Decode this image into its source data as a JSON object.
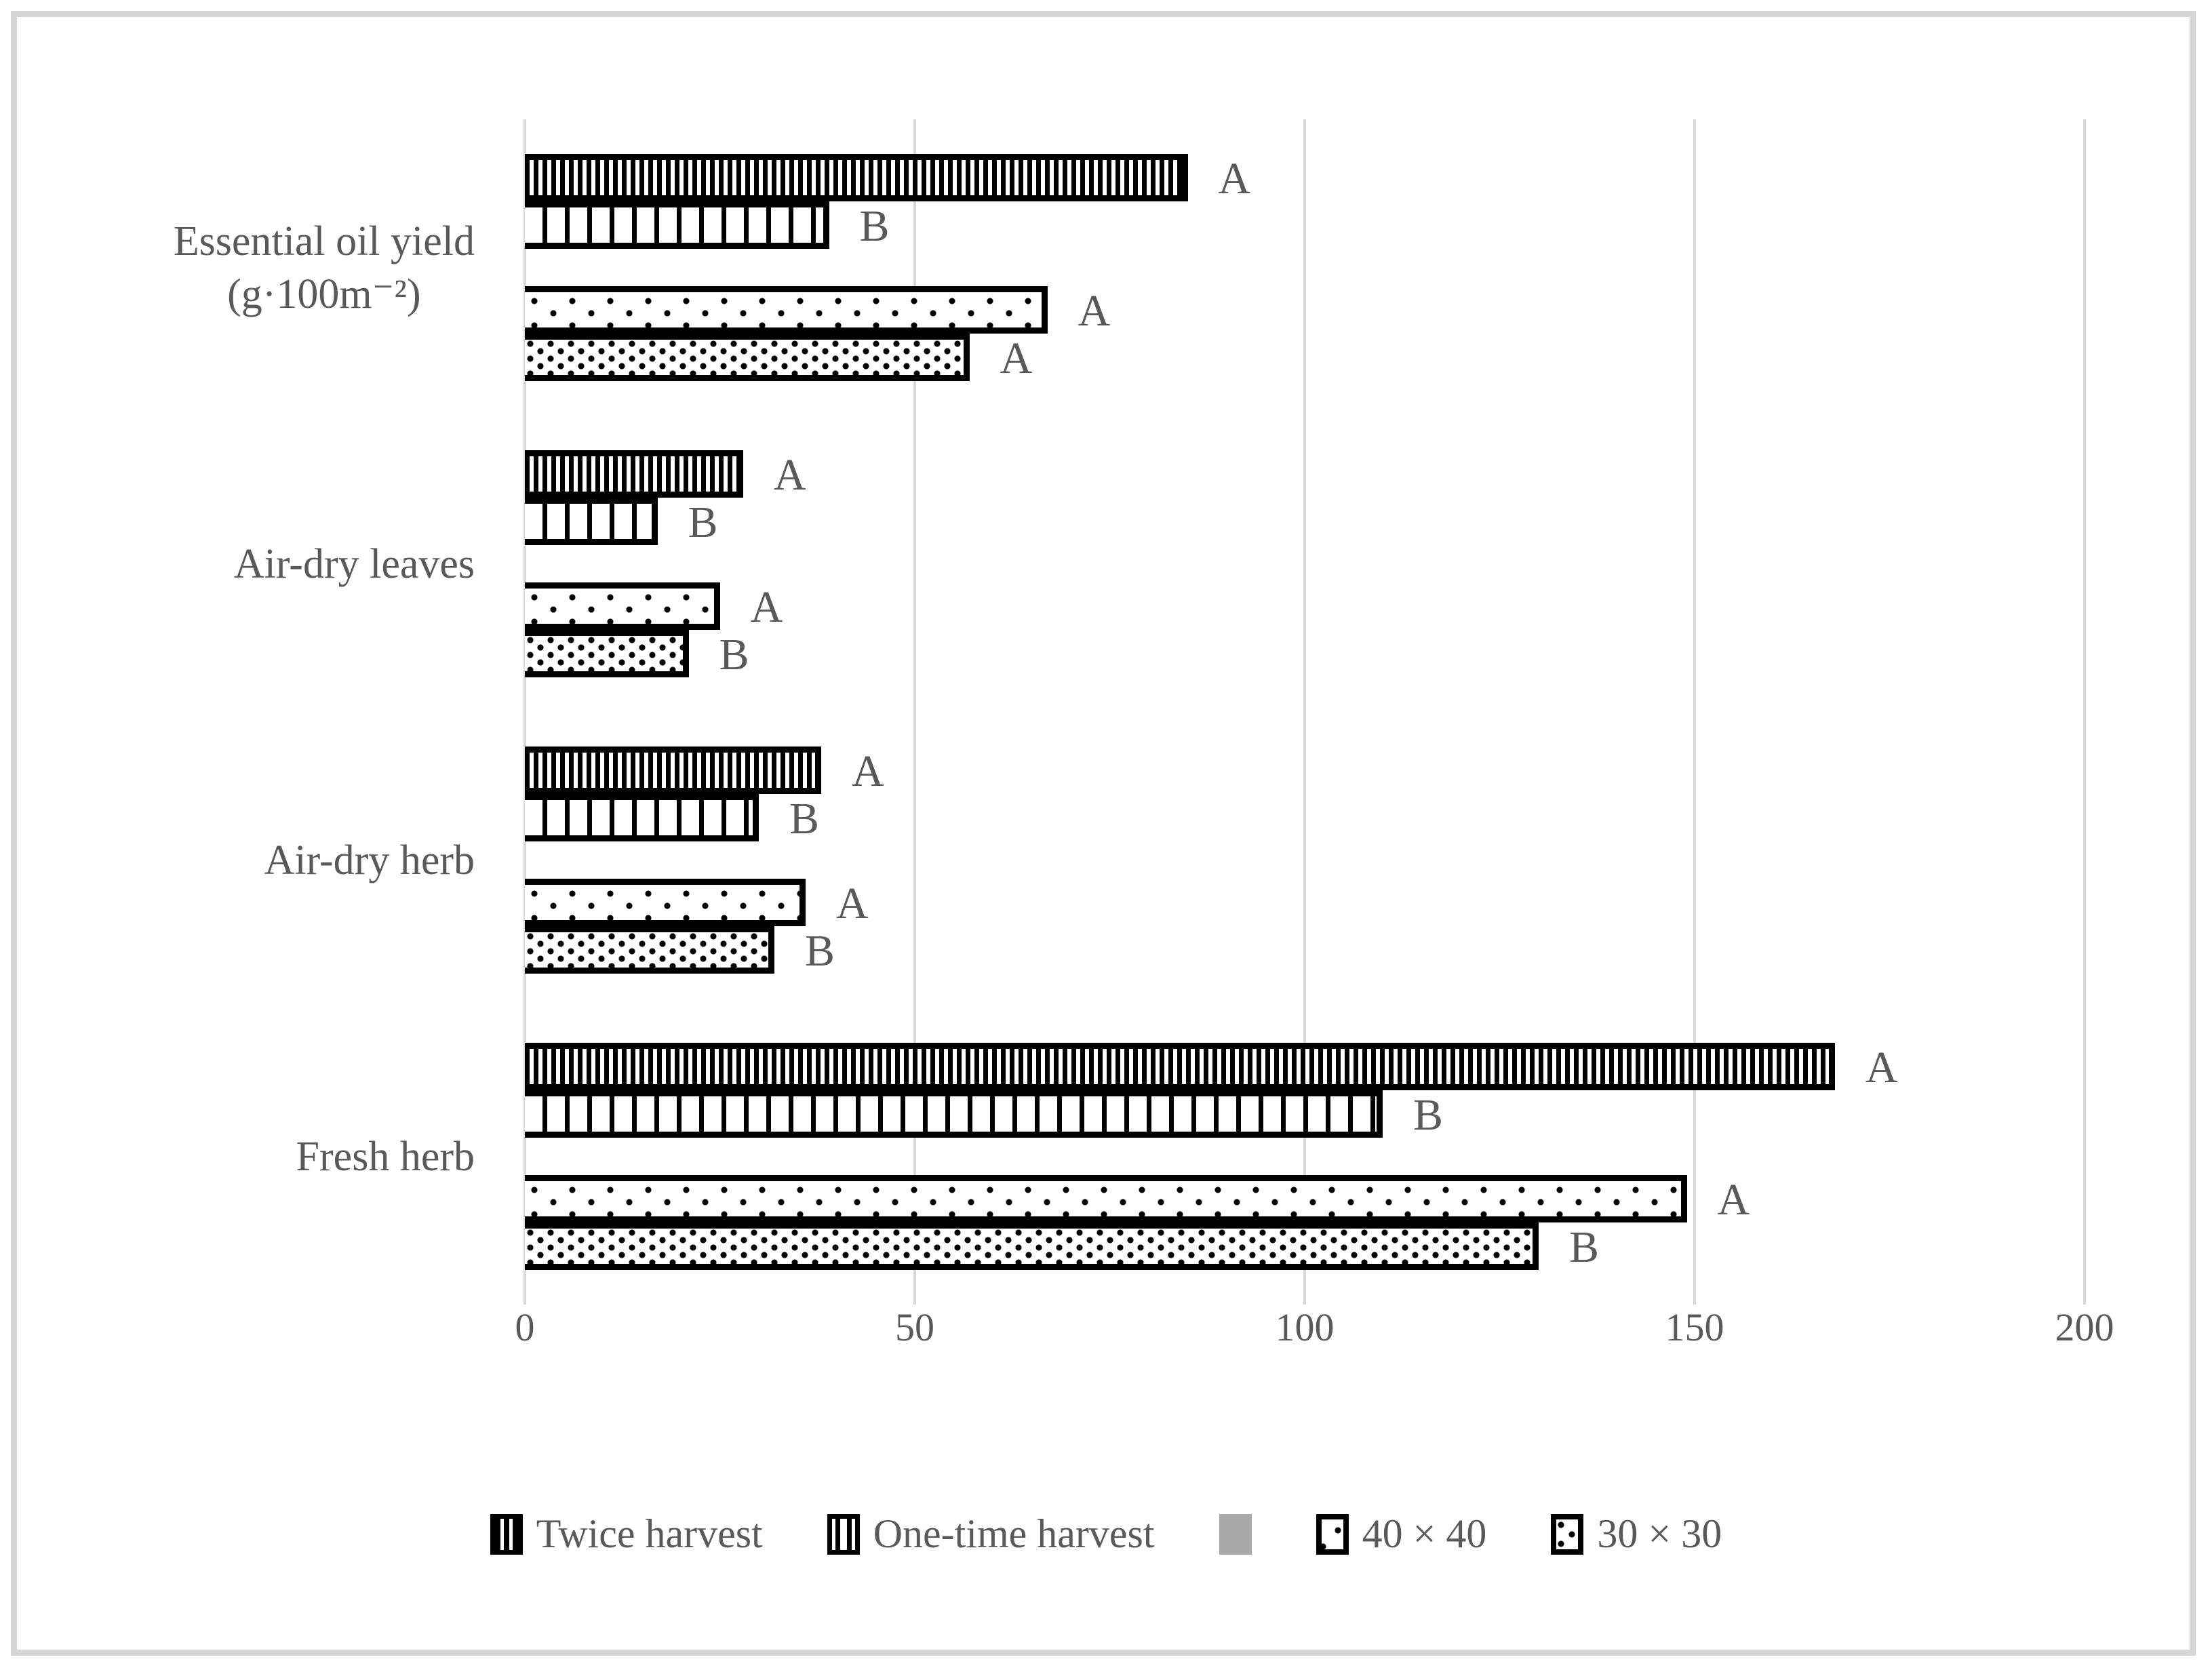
{
  "figure": {
    "background_color": "#ffffff",
    "frame_border_color": "#d6d6d6",
    "text_color": "#595959",
    "gridline_color": "#d9d9d9",
    "bar_outline_color": "#000000",
    "gray_swatch_color": "#a9a9a9"
  },
  "chart_data": {
    "type": "bar",
    "orientation": "horizontal",
    "title": "",
    "xlabel": "",
    "ylabel": "",
    "xlim": [
      0,
      200
    ],
    "x_ticks": [
      "0",
      "50",
      "100",
      "150",
      "200"
    ],
    "grid": true,
    "categories": [
      {
        "lines": [
          "Essential oil yield",
          "(g·100m⁻²)"
        ]
      },
      {
        "lines": [
          "Air-dry leaves"
        ]
      },
      {
        "lines": [
          "Air-dry herb"
        ]
      },
      {
        "lines": [
          "Fresh herb"
        ]
      }
    ],
    "series": [
      {
        "name": "Twice harvest",
        "pattern": "fine-vertical-stripes",
        "values": [
          85,
          28,
          38,
          168
        ],
        "point_labels": [
          "A",
          "A",
          "A",
          "A"
        ]
      },
      {
        "name": "One-time harvest",
        "pattern": "coarse-vertical-stripes",
        "values": [
          39,
          17,
          30,
          110
        ],
        "point_labels": [
          "B",
          "B",
          "B",
          "B"
        ]
      },
      {
        "name": "",
        "pattern": "solid-gray",
        "values": [
          null,
          null,
          null,
          null
        ],
        "point_labels": [
          "",
          "",
          "",
          ""
        ]
      },
      {
        "name": "40 × 40",
        "pattern": "sparse-dots",
        "values": [
          67,
          25,
          36,
          149
        ],
        "point_labels": [
          "A",
          "A",
          "A",
          "A"
        ]
      },
      {
        "name": "30 × 30",
        "pattern": "dense-dots",
        "values": [
          57,
          21,
          32,
          130
        ],
        "point_labels": [
          "A",
          "B",
          "B",
          "B"
        ]
      }
    ],
    "legend": {
      "position": "bottom",
      "items": [
        {
          "label": "Twice harvest",
          "swatch": "fine-vertical-stripes"
        },
        {
          "label": "One-time harvest",
          "swatch": "coarse-vertical-stripes"
        },
        {
          "label": "",
          "swatch": "solid-gray"
        },
        {
          "label": "40 × 40",
          "swatch": "sparse-dots"
        },
        {
          "label": "30 × 30",
          "swatch": "dense-dots"
        }
      ]
    }
  }
}
